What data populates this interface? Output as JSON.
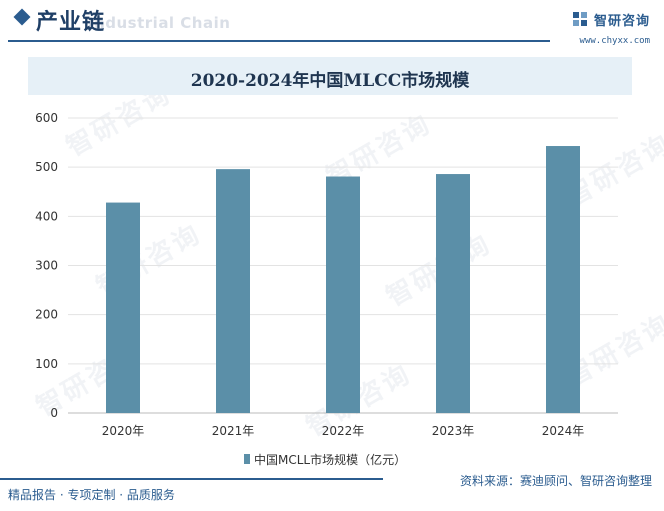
{
  "header": {
    "title": "产业链",
    "title_en": "Industrial Chain",
    "brand_name": "智研咨询",
    "brand_url": "www.chyxx.com"
  },
  "chart_data": {
    "type": "bar",
    "title": "2020-2024年中国MLCC市场规模",
    "categories": [
      "2020年",
      "2021年",
      "2022年",
      "2023年",
      "2024年"
    ],
    "series": [
      {
        "name": "中国MCLL市场规模（亿元）",
        "values": [
          428,
          496,
          481,
          486,
          543
        ],
        "color": "#5b8fa8"
      }
    ],
    "ylim": [
      0,
      600
    ],
    "yticks": [
      0,
      100,
      200,
      300,
      400,
      500,
      600
    ],
    "grid": true,
    "legend": "bottom"
  },
  "footer": {
    "left": "精品报告 · 专项定制 · 品质服务",
    "source": "资料来源：赛迪顾问、智研咨询整理"
  },
  "watermark": "智研咨询"
}
